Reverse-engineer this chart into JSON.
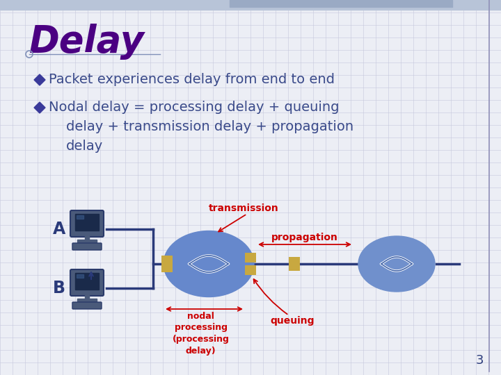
{
  "title": "Delay",
  "title_color": "#4B0082",
  "bg_color": "#ECEEF5",
  "bullet1": "Packet experiences delay from end to end",
  "bullet2_line1": "Nodal delay = processing delay + queuing",
  "bullet2_line2": "delay + transmission delay + propagation",
  "bullet2_line3": "delay",
  "bullet_color": "#3A4A8A",
  "bullet_marker_color": "#3A3A9A",
  "label_transmission": "transmission",
  "label_propagation": "propagation",
  "label_nodal": "nodal\nprocessing\n(processing\ndelay)",
  "label_queuing": "queuing",
  "label_A": "A",
  "label_B": "B",
  "label_color": "#CC0000",
  "label_AB_color": "#2A3A7A",
  "router1_color": "#6688CC",
  "router2_color": "#7090CC",
  "wire_color": "#2A3A7A",
  "queue_color": "#C8A840",
  "page_number": "3",
  "grid_color": "#C5C8DC",
  "header_color": "#B8C4D8",
  "header2_color": "#9AAAC4",
  "border_color": "#9090B8",
  "title_line_color": "#8090B8"
}
